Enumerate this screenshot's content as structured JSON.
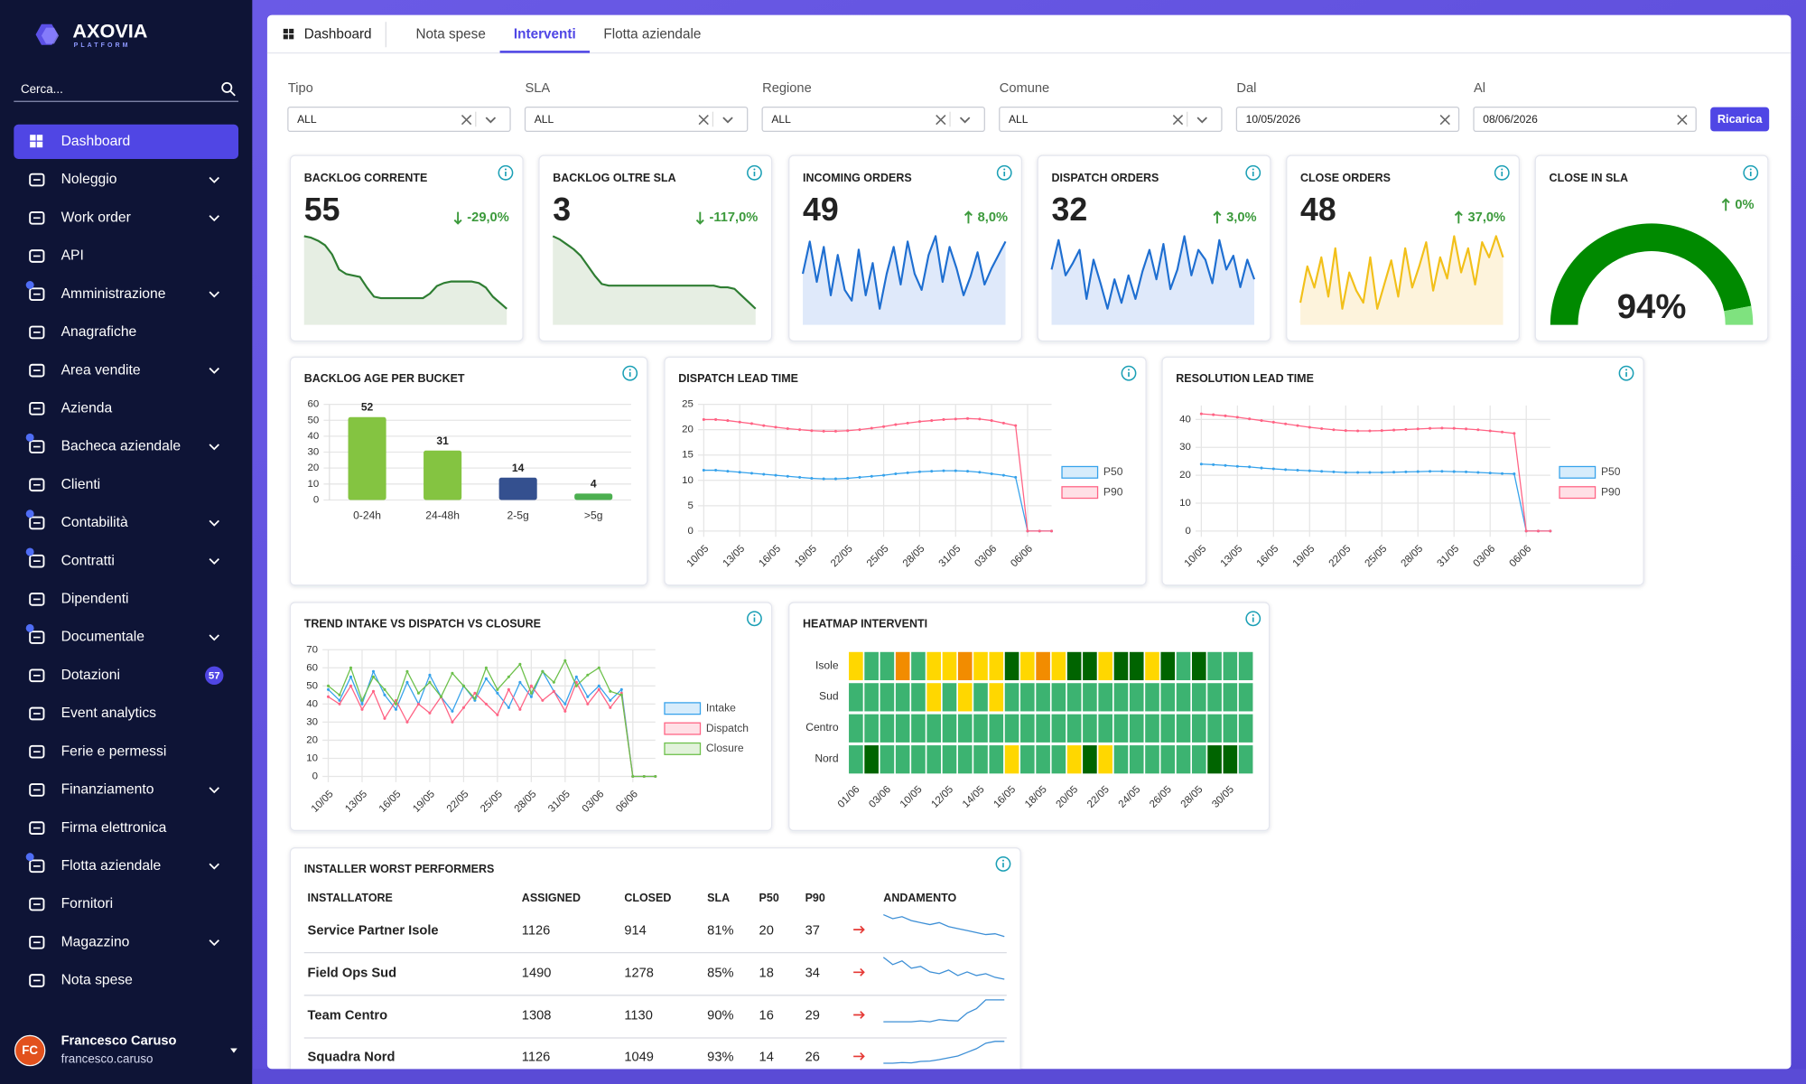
{
  "sidebar": {
    "brand": "AXOVIA",
    "brand_sub": "PLATFORM",
    "search_placeholder": "Cerca...",
    "menu": [
      {
        "label": "Dashboard",
        "active": true
      },
      {
        "label": "Noleggio",
        "submenu": true
      },
      {
        "label": "Work order",
        "submenu": true
      },
      {
        "label": "API"
      },
      {
        "label": "Amministrazione",
        "submenu": true,
        "notification": true
      },
      {
        "label": "Anagrafiche"
      },
      {
        "label": "Area vendite",
        "submenu": true
      },
      {
        "label": "Azienda"
      },
      {
        "label": "Bacheca aziendale",
        "submenu": true,
        "notification": true
      },
      {
        "label": "Clienti"
      },
      {
        "label": "Contabilità",
        "submenu": true,
        "notification": true
      },
      {
        "label": "Contratti",
        "submenu": true,
        "notification": true
      },
      {
        "label": "Dipendenti"
      },
      {
        "label": "Documentale",
        "submenu": true,
        "notification": true
      },
      {
        "label": "Dotazioni",
        "badge": 57
      },
      {
        "label": "Event analytics"
      },
      {
        "label": "Ferie e permessi"
      },
      {
        "label": "Finanziamento",
        "submenu": true
      },
      {
        "label": "Firma elettronica"
      },
      {
        "label": "Flotta aziendale",
        "submenu": true,
        "notification": true
      },
      {
        "label": "Fornitori"
      },
      {
        "label": "Magazzino",
        "submenu": true
      },
      {
        "label": "Nota spese"
      }
    ],
    "user": {
      "initials": "FC",
      "name": "Francesco Caruso",
      "username": "francesco.caruso"
    }
  },
  "tabs": [
    {
      "label": "Dashboard"
    },
    {
      "label": "Nota spese"
    },
    {
      "label": "Interventi",
      "active": true
    },
    {
      "label": "Flotta aziendale"
    }
  ],
  "filters": [
    {
      "label": "Tipo",
      "value": "ALL",
      "dropdown": true
    },
    {
      "label": "SLA",
      "value": "ALL",
      "dropdown": true
    },
    {
      "label": "Regione",
      "value": "ALL",
      "dropdown": true
    },
    {
      "label": "Comune",
      "value": "ALL",
      "dropdown": true
    },
    {
      "label": "Dal",
      "value": "10/05/2026"
    },
    {
      "label": "Al",
      "value": "08/06/2026"
    }
  ],
  "reload_button": "Ricarica",
  "kpis": [
    {
      "type": "sparkline",
      "title": "BACKLOG CORRENTE",
      "value": 55,
      "delta": "-29,0%",
      "direction": "down",
      "color": "#2e7d32",
      "fill": "#e6eee3",
      "spark": [
        52,
        51,
        49,
        46,
        40,
        30,
        27,
        26,
        25,
        18,
        12,
        11,
        11,
        11,
        11,
        11,
        11,
        11,
        14,
        19,
        21,
        22,
        22,
        22,
        22,
        21,
        18,
        12,
        8,
        4
      ]
    },
    {
      "type": "sparkline",
      "title": "BACKLOG OLTRE SLA",
      "value": 3,
      "delta": "-117,0%",
      "direction": "down",
      "color": "#2e7d32",
      "fill": "#e6eee3",
      "spark": [
        5,
        4.8,
        4.5,
        4.2,
        3.8,
        3.2,
        2.6,
        2.1,
        2,
        2,
        2,
        2,
        2,
        2,
        2,
        2,
        2,
        2,
        2,
        2,
        2,
        2,
        2,
        2,
        1.9,
        1.9,
        1.8,
        1.4,
        1,
        0.6
      ]
    },
    {
      "type": "sparkline",
      "title": "INCOMING ORDERS",
      "value": 49,
      "delta": "8,0%",
      "direction": "up",
      "color": "#1f6fd1",
      "fill": "#dfe9fa",
      "spark": [
        48,
        60,
        45,
        58,
        40,
        55,
        42,
        38,
        57,
        40,
        52,
        35,
        48,
        58,
        44,
        60,
        48,
        42,
        55,
        62,
        45,
        58,
        50,
        40,
        47,
        56,
        44,
        50,
        55,
        60
      ]
    },
    {
      "type": "sparkline",
      "title": "DISPATCH ORDERS",
      "value": 32,
      "delta": "3,0%",
      "direction": "up",
      "color": "#1f6fd1",
      "fill": "#dfe9fa",
      "spark": [
        45,
        60,
        42,
        48,
        55,
        30,
        50,
        38,
        25,
        40,
        28,
        42,
        30,
        44,
        55,
        40,
        58,
        35,
        45,
        62,
        42,
        55,
        50,
        38,
        60,
        45,
        52,
        36,
        50,
        40
      ]
    },
    {
      "type": "sparkline",
      "title": "CLOSE ORDERS",
      "value": 48,
      "delta": "37,0%",
      "direction": "up",
      "color": "#f2c01a",
      "fill": "#fdf3dc",
      "spark": [
        40,
        52,
        45,
        55,
        42,
        58,
        38,
        50,
        44,
        40,
        55,
        38,
        46,
        54,
        42,
        58,
        45,
        52,
        60,
        44,
        55,
        48,
        62,
        50,
        58,
        46,
        60,
        55,
        62,
        55
      ]
    },
    {
      "type": "gauge",
      "title": "CLOSE IN SLA",
      "value": 94,
      "value_label": "94%",
      "delta": "0%",
      "direction": "up",
      "ylim": [
        0,
        100
      ],
      "color": "#008a00",
      "rest_color": "#7fe27f"
    }
  ],
  "charts": {
    "backlog_age": {
      "type": "bar",
      "title": "BACKLOG AGE PER BUCKET",
      "categories": [
        "0-24h",
        "24-48h",
        "2-5g",
        ">5g"
      ],
      "values": [
        52,
        31,
        14,
        4
      ],
      "colors": [
        "#84c441",
        "#84c441",
        "#34508f",
        "#4caf50"
      ],
      "ylim": [
        0,
        60
      ],
      "yticks": [
        0,
        10,
        20,
        30,
        40,
        50,
        60
      ],
      "grid": true
    },
    "dispatch_lead_time": {
      "type": "line",
      "title": "DISPATCH LEAD TIME",
      "categories": [
        "10/05",
        null,
        null,
        "13/05",
        null,
        null,
        "16/05",
        null,
        null,
        "19/05",
        null,
        null,
        "22/05",
        null,
        null,
        "25/05",
        null,
        null,
        "28/05",
        null,
        null,
        "31/05",
        null,
        null,
        "03/06",
        null,
        null,
        "06/06",
        null,
        null
      ],
      "series": [
        {
          "name": "P50",
          "color": "#36a2eb",
          "values": [
            12,
            12,
            11.8,
            11.6,
            11.4,
            11.2,
            11,
            10.8,
            10.6,
            10.4,
            10.3,
            10.3,
            10.4,
            10.6,
            10.8,
            11,
            11.3,
            11.5,
            11.7,
            11.8,
            11.9,
            11.9,
            11.8,
            11.6,
            11.3,
            11,
            10.6,
            0,
            0,
            0
          ]
        },
        {
          "name": "P90",
          "color": "#ff6384",
          "values": [
            22,
            22,
            21.8,
            21.5,
            21.2,
            20.8,
            20.5,
            20.2,
            20,
            19.8,
            19.7,
            19.7,
            19.8,
            20,
            20.3,
            20.6,
            21,
            21.3,
            21.6,
            21.8,
            22,
            22.1,
            22.2,
            22.1,
            21.8,
            21.3,
            20.8,
            0,
            0,
            0
          ]
        }
      ],
      "ylim": [
        0,
        25
      ],
      "yticks": [
        0,
        5,
        10,
        15,
        20,
        25
      ],
      "grid": true,
      "legend": "right"
    },
    "resolution_lead_time": {
      "type": "line",
      "title": "RESOLUTION LEAD TIME",
      "categories": [
        "10/05",
        null,
        null,
        "13/05",
        null,
        null,
        "16/05",
        null,
        null,
        "19/05",
        null,
        null,
        "22/05",
        null,
        null,
        "25/05",
        null,
        null,
        "28/05",
        null,
        null,
        "31/05",
        null,
        null,
        "03/06",
        null,
        null,
        "06/06",
        null,
        null
      ],
      "series": [
        {
          "name": "P50",
          "color": "#36a2eb",
          "values": [
            24,
            23.8,
            23.5,
            23.2,
            23,
            22.6,
            22.3,
            22,
            21.8,
            21.6,
            21.4,
            21.2,
            21,
            21,
            21,
            21,
            21.1,
            21.2,
            21.3,
            21.4,
            21.4,
            21.3,
            21.2,
            21,
            20.8,
            20.6,
            20.5,
            0,
            0,
            0
          ]
        },
        {
          "name": "P90",
          "color": "#ff6384",
          "values": [
            42,
            41.7,
            41.3,
            40.8,
            40.2,
            39.6,
            39,
            38.4,
            37.8,
            37.2,
            36.7,
            36.3,
            36,
            35.9,
            35.9,
            36,
            36.2,
            36.4,
            36.6,
            36.8,
            36.9,
            36.8,
            36.6,
            36.3,
            35.9,
            35.5,
            35,
            0,
            0,
            0
          ]
        }
      ],
      "ylim": [
        0,
        45
      ],
      "yticks": [
        0,
        10,
        20,
        30,
        40
      ],
      "grid": true,
      "legend": "right"
    },
    "trend": {
      "type": "line",
      "title": "TREND INTAKE VS DISPATCH VS CLOSURE",
      "categories": [
        "10/05",
        null,
        null,
        "13/05",
        null,
        null,
        "16/05",
        null,
        null,
        "19/05",
        null,
        null,
        "22/05",
        null,
        null,
        "25/05",
        null,
        null,
        "28/05",
        null,
        null,
        "31/05",
        null,
        null,
        "03/06",
        null,
        null,
        "06/06",
        null,
        null
      ],
      "series": [
        {
          "name": "Intake",
          "color": "#36a2eb",
          "values": [
            48,
            42,
            55,
            40,
            58,
            45,
            37,
            52,
            40,
            56,
            44,
            36,
            50,
            42,
            54,
            46,
            38,
            52,
            44,
            58,
            47,
            40,
            55,
            44,
            50,
            42,
            48,
            0,
            0,
            0
          ]
        },
        {
          "name": "Dispatch",
          "color": "#ff6384",
          "values": [
            44,
            40,
            50,
            37,
            47,
            32,
            42,
            30,
            40,
            35,
            44,
            30,
            38,
            46,
            40,
            34,
            48,
            37,
            50,
            42,
            47,
            36,
            52,
            40,
            48,
            38,
            46,
            0,
            0,
            0
          ]
        },
        {
          "name": "Closure",
          "color": "#6cc04a",
          "values": [
            50,
            45,
            60,
            42,
            55,
            48,
            40,
            58,
            46,
            52,
            44,
            57,
            50,
            43,
            60,
            48,
            55,
            62,
            46,
            58,
            52,
            64,
            50,
            56,
            60,
            47,
            45,
            0,
            0,
            0
          ]
        }
      ],
      "ylim": [
        0,
        70
      ],
      "yticks": [
        0,
        10,
        20,
        30,
        40,
        50,
        60,
        70
      ],
      "grid": true,
      "legend": "right"
    },
    "heatmap": {
      "type": "heatmap",
      "title": "HEATMAP INTERVENTI",
      "rows": [
        "Isole",
        "Sud",
        "Centro",
        "Nord"
      ],
      "columns": [
        "01/06",
        null,
        "03/06",
        null,
        "10/05",
        null,
        "12/05",
        null,
        "14/05",
        null,
        "16/05",
        null,
        "18/05",
        null,
        "20/05",
        null,
        "22/05",
        null,
        "24/05",
        null,
        "26/05",
        null,
        "28/05",
        null,
        "30/05",
        null
      ],
      "cells": [
        [
          "#ffd700",
          "#3cb371",
          "#3cb371",
          "#f28c00",
          "#3cb371",
          "#ffd700",
          "#ffd700",
          "#f28c00",
          "#ffd700",
          "#ffd700",
          "#006400",
          "#ffd700",
          "#f28c00",
          "#ffd700",
          "#006400",
          "#006400",
          "#ffd700",
          "#006400",
          "#006400",
          "#ffd700",
          "#006400",
          "#3cb371",
          "#006400",
          "#3cb371",
          "#3cb371",
          "#3cb371"
        ],
        [
          "#3cb371",
          "#3cb371",
          "#3cb371",
          "#3cb371",
          "#3cb371",
          "#ffd700",
          "#3cb371",
          "#ffd700",
          "#3cb371",
          "#ffd700",
          "#3cb371",
          "#3cb371",
          "#3cb371",
          "#3cb371",
          "#3cb371",
          "#3cb371",
          "#3cb371",
          "#3cb371",
          "#3cb371",
          "#3cb371",
          "#3cb371",
          "#3cb371",
          "#3cb371",
          "#3cb371",
          "#3cb371",
          "#3cb371"
        ],
        [
          "#3cb371",
          "#3cb371",
          "#3cb371",
          "#3cb371",
          "#3cb371",
          "#3cb371",
          "#3cb371",
          "#3cb371",
          "#3cb371",
          "#3cb371",
          "#3cb371",
          "#3cb371",
          "#3cb371",
          "#3cb371",
          "#3cb371",
          "#3cb371",
          "#3cb371",
          "#3cb371",
          "#3cb371",
          "#3cb371",
          "#3cb371",
          "#3cb371",
          "#3cb371",
          "#3cb371",
          "#3cb371",
          "#3cb371"
        ],
        [
          "#3cb371",
          "#006400",
          "#3cb371",
          "#3cb371",
          "#3cb371",
          "#3cb371",
          "#3cb371",
          "#3cb371",
          "#3cb371",
          "#3cb371",
          "#ffd700",
          "#3cb371",
          "#3cb371",
          "#3cb371",
          "#ffd700",
          "#006400",
          "#ffd700",
          "#3cb371",
          "#3cb371",
          "#3cb371",
          "#3cb371",
          "#3cb371",
          "#3cb371",
          "#006400",
          "#006400",
          "#3cb371"
        ]
      ]
    }
  },
  "table": {
    "title": "INSTALLER WORST PERFORMERS",
    "columns": [
      "INSTALLATORE",
      "ASSIGNED",
      "CLOSED",
      "SLA",
      "P50",
      "P90",
      "ANDAMENTO"
    ],
    "rows": [
      [
        "Service Partner Isole",
        1126,
        914,
        "81%",
        20,
        37
      ],
      [
        "Field Ops Sud",
        1490,
        1278,
        "85%",
        18,
        34
      ],
      [
        "Team Centro",
        1308,
        1130,
        "90%",
        16,
        29
      ],
      [
        "Squadra Nord",
        1126,
        1049,
        "93%",
        14,
        26
      ]
    ],
    "trends": [
      [
        10,
        9,
        9.5,
        8.5,
        8,
        7.5,
        8,
        7,
        6.5,
        6,
        5.5,
        5,
        5.2,
        4.5
      ],
      [
        10,
        8,
        9,
        7,
        7.5,
        6,
        5.5,
        6.5,
        5,
        6,
        5,
        5.5,
        4.5,
        4
      ],
      [
        3,
        3,
        3,
        3,
        3.2,
        3,
        3.5,
        3.3,
        3.2,
        5,
        6,
        8,
        8,
        8
      ],
      [
        2,
        2,
        2.2,
        2.1,
        2.5,
        2.6,
        3,
        3.5,
        4,
        5,
        6,
        7.5,
        8,
        8
      ]
    ]
  }
}
